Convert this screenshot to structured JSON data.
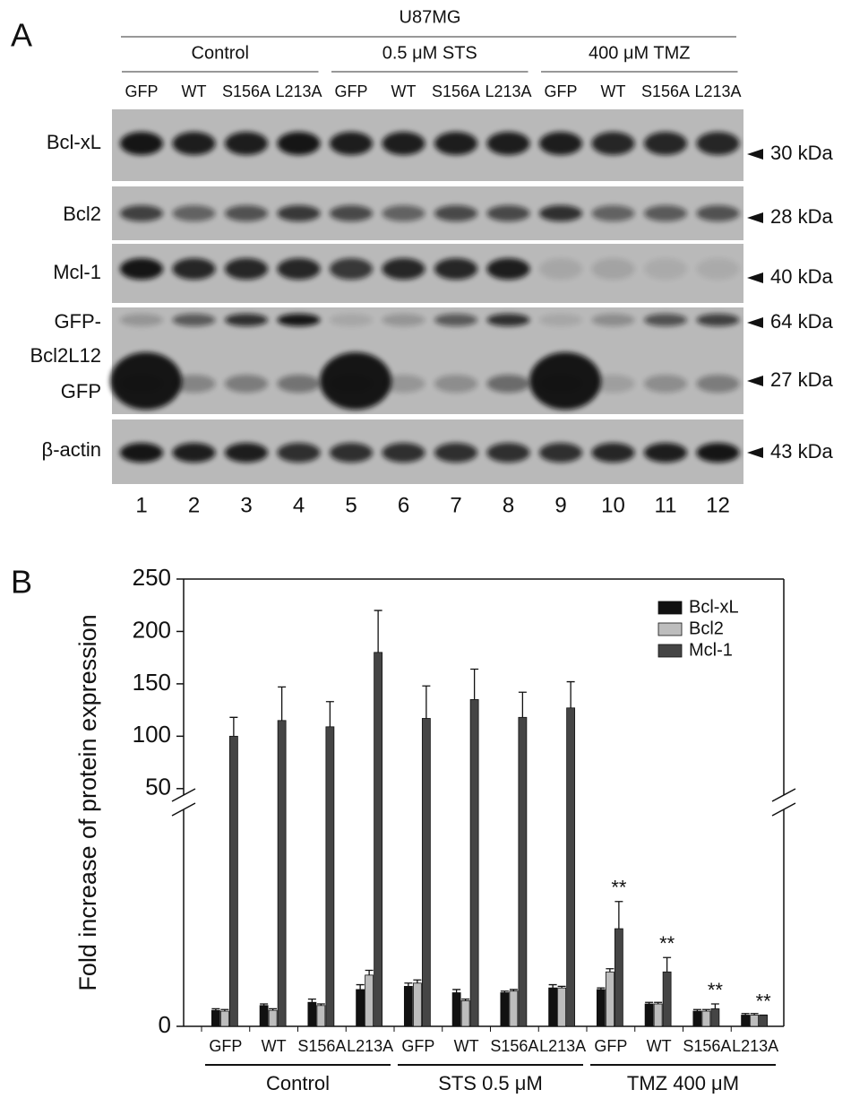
{
  "panel_a": {
    "label": "A",
    "title": "U87MG",
    "groups": [
      "Control",
      "0.5 μM STS",
      "400 μM TMZ"
    ],
    "lanes": [
      "GFP",
      "WT",
      "S156A",
      "L213A",
      "GFP",
      "WT",
      "S156A",
      "L213A",
      "GFP",
      "WT",
      "S156A",
      "L213A"
    ],
    "row_labels": [
      "Bcl-xL",
      "Bcl2",
      "Mcl-1",
      "GFP-",
      "Bcl2L12",
      "GFP",
      "β-actin"
    ],
    "markers": [
      "30 kDa",
      "28 kDa",
      "40 kDa",
      "64 kDa",
      "27 kDa",
      "43 kDa"
    ],
    "lane_numbers": [
      "1",
      "2",
      "3",
      "4",
      "5",
      "6",
      "7",
      "8",
      "9",
      "10",
      "11",
      "12"
    ]
  },
  "panel_b": {
    "label": "B"
  },
  "chart_data": {
    "type": "bar",
    "y_label": "Fold increase of protein expression",
    "categories": [
      "GFP",
      "WT",
      "S156A",
      "L213A",
      "GFP",
      "WT",
      "S156A",
      "L213A",
      "GFP",
      "WT",
      "S156A",
      "L213A"
    ],
    "groups": [
      "Control",
      "STS 0.5 μM",
      "TMZ 400 μM"
    ],
    "series": [
      {
        "name": "Bcl-xL",
        "color": "#111111",
        "values": [
          1.0,
          1.3,
          1.5,
          2.3,
          2.5,
          2.1,
          2.1,
          2.4,
          2.3,
          1.4,
          0.95,
          0.7
        ],
        "errors": [
          0.1,
          0.1,
          0.2,
          0.3,
          0.2,
          0.2,
          0.1,
          0.2,
          0.1,
          0.1,
          0.1,
          0.1
        ]
      },
      {
        "name": "Bcl2",
        "color": "#bdbdbd",
        "values": [
          0.95,
          1.0,
          1.3,
          3.2,
          2.7,
          1.6,
          2.2,
          2.4,
          3.4,
          1.4,
          0.95,
          0.7
        ],
        "errors": [
          0.1,
          0.1,
          0.1,
          0.3,
          0.2,
          0.1,
          0.1,
          0.1,
          0.2,
          0.1,
          0.1,
          0.1
        ]
      },
      {
        "name": "Mcl-1",
        "color": "#454545",
        "values": [
          100,
          115,
          109,
          180,
          117,
          135,
          118,
          127,
          6.1,
          3.4,
          1.1,
          0.7
        ],
        "errors": [
          18,
          32,
          24,
          40,
          31,
          29,
          24,
          25,
          1.7,
          0.9,
          0.3,
          0
        ]
      }
    ],
    "ylim": [
      0,
      250
    ],
    "ybreak": [
      14,
      37
    ],
    "yticks": [
      0,
      50,
      100,
      150,
      200,
      250
    ],
    "legend": "upper right",
    "significance": [
      null,
      null,
      null,
      null,
      null,
      null,
      null,
      null,
      "**",
      "**",
      "**",
      "**"
    ]
  }
}
